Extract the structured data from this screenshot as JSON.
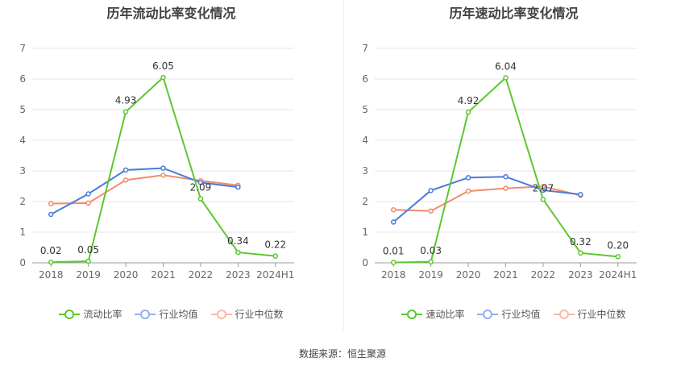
{
  "chart_data": [
    {
      "type": "line",
      "title": "历年流动比率变化情况",
      "categories": [
        "2018",
        "2019",
        "2020",
        "2021",
        "2022",
        "2023",
        "2024H1"
      ],
      "ylim": [
        0,
        7
      ],
      "yticks": [
        "0",
        "1",
        "2",
        "3",
        "4",
        "5",
        "6",
        "7"
      ],
      "grid": true,
      "legend_position": "bottom",
      "series": [
        {
          "name": "流动比率",
          "color": "#5cc82f",
          "values": [
            0.02,
            0.05,
            4.93,
            6.05,
            2.09,
            0.34,
            0.22
          ],
          "labels": [
            "0.02",
            "0.05",
            "4.93",
            "6.05",
            "2.09",
            "0.34",
            "0.22"
          ]
        },
        {
          "name": "行业均值",
          "color": "#4a7bdc",
          "values": [
            1.58,
            2.25,
            3.03,
            3.09,
            2.62,
            2.47,
            null
          ]
        },
        {
          "name": "行业中位数",
          "color": "#f28c6a",
          "values": [
            1.93,
            1.95,
            2.7,
            2.86,
            2.68,
            2.53,
            null
          ]
        }
      ]
    },
    {
      "type": "line",
      "title": "历年速动比率变化情况",
      "categories": [
        "2018",
        "2019",
        "2020",
        "2021",
        "2022",
        "2023",
        "2024H1"
      ],
      "ylim": [
        0,
        7
      ],
      "yticks": [
        "0",
        "1",
        "2",
        "3",
        "4",
        "5",
        "6",
        "7"
      ],
      "grid": true,
      "legend_position": "bottom",
      "series": [
        {
          "name": "速动比率",
          "color": "#5cc82f",
          "values": [
            0.01,
            0.03,
            4.92,
            6.04,
            2.07,
            0.32,
            0.2
          ],
          "labels": [
            "0.01",
            "0.03",
            "4.92",
            "6.04",
            "2.07",
            "0.32",
            "0.20"
          ]
        },
        {
          "name": "行业均值",
          "color": "#4a7bdc",
          "values": [
            1.33,
            2.36,
            2.78,
            2.81,
            2.37,
            2.23,
            null
          ]
        },
        {
          "name": "行业中位数",
          "color": "#f28c6a",
          "values": [
            1.73,
            1.69,
            2.34,
            2.43,
            2.49,
            2.2,
            null
          ]
        }
      ]
    }
  ],
  "footer": {
    "source": "数据来源：恒生聚源"
  }
}
